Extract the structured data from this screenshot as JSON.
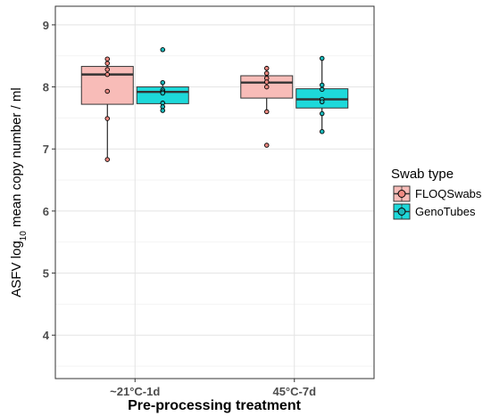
{
  "chart_data": {
    "type": "boxplot",
    "title": "",
    "xlabel": "Pre-processing treatment",
    "ylabel": {
      "prefix": "ASFV  log",
      "subscript": "10",
      "suffix": " mean copy number / ml"
    },
    "ylim": [
      3.3,
      9.3
    ],
    "yticks": [
      4,
      5,
      6,
      7,
      8,
      9
    ],
    "grid": true,
    "legend": {
      "title": "Swab type",
      "position": "right"
    },
    "categories": [
      "~21°C-1d",
      "45°C-7d"
    ],
    "series": [
      {
        "name": "FLOQSwabs",
        "fill": "#F8BCB8",
        "point_fill": "#F08A82",
        "boxes": [
          {
            "min": 6.83,
            "q1": 7.72,
            "median": 8.2,
            "q3": 8.33,
            "max": 8.45,
            "points": [
              8.45,
              8.38,
              8.28,
              8.2,
              7.93,
              7.49,
              6.83
            ]
          },
          {
            "min": 7.6,
            "q1": 7.82,
            "median": 8.07,
            "q3": 8.18,
            "max": 8.3,
            "outliers": [
              7.06
            ],
            "points": [
              8.3,
              8.22,
              8.14,
              8.08,
              8.0,
              7.6,
              7.06
            ]
          }
        ]
      },
      {
        "name": "GenoTubes",
        "fill": "#1DD9DA",
        "point_fill": "#1AB9BB",
        "boxes": [
          {
            "min": 7.62,
            "q1": 7.73,
            "median": 7.92,
            "q3": 8.0,
            "max": 8.07,
            "outliers": [
              8.6
            ],
            "points": [
              8.6,
              8.07,
              7.95,
              7.92,
              7.9,
              7.74,
              7.68,
              7.62
            ]
          },
          {
            "min": 7.28,
            "q1": 7.66,
            "median": 7.8,
            "q3": 7.97,
            "max": 8.46,
            "points": [
              8.46,
              8.03,
              7.96,
              7.8,
              7.76,
              7.57,
              7.28
            ]
          }
        ]
      }
    ]
  }
}
